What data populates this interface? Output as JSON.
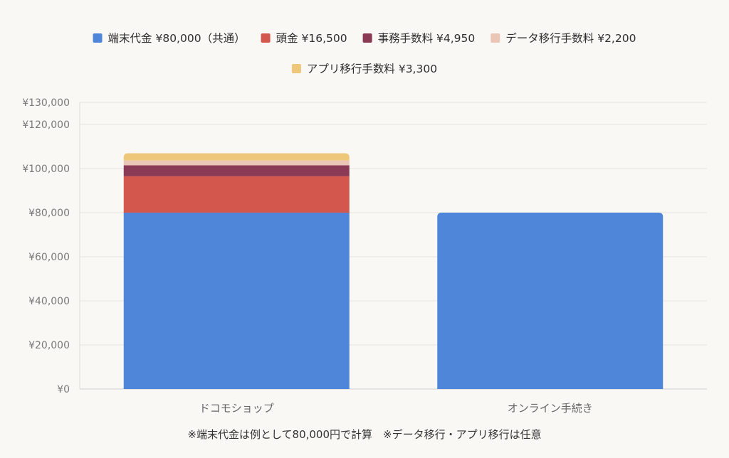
{
  "chart_data": {
    "type": "bar",
    "stacked": true,
    "categories": [
      "ドコモショップ",
      "オンライン手続き"
    ],
    "series": [
      {
        "name": "端末代金 ¥80,000（共通）",
        "values": [
          80000,
          80000
        ],
        "color": "#4f86d9"
      },
      {
        "name": "頭金 ¥16,500",
        "values": [
          16500,
          0
        ],
        "color": "#d4574d"
      },
      {
        "name": "事務手数料 ¥4,950",
        "values": [
          4950,
          0
        ],
        "color": "#8b3a55"
      },
      {
        "name": "データ移行手数料 ¥2,200",
        "values": [
          2200,
          0
        ],
        "color": "#ebc5b5"
      },
      {
        "name": "アプリ移行手数料 ¥3,300",
        "values": [
          3300,
          0
        ],
        "color": "#eec77a"
      }
    ],
    "ylim": [
      0,
      130000
    ],
    "yticks": [
      0,
      20000,
      40000,
      60000,
      80000,
      100000,
      120000,
      130000
    ],
    "ytick_labels": [
      "¥0",
      "¥20,000",
      "¥40,000",
      "¥60,000",
      "¥80,000",
      "¥100,000",
      "¥120,000",
      "¥130,000"
    ],
    "grid": true,
    "legend_position": "top-center"
  },
  "footnote": "※端末代金は例として80,000円で計算　※データ移行・アプリ移行は任意"
}
